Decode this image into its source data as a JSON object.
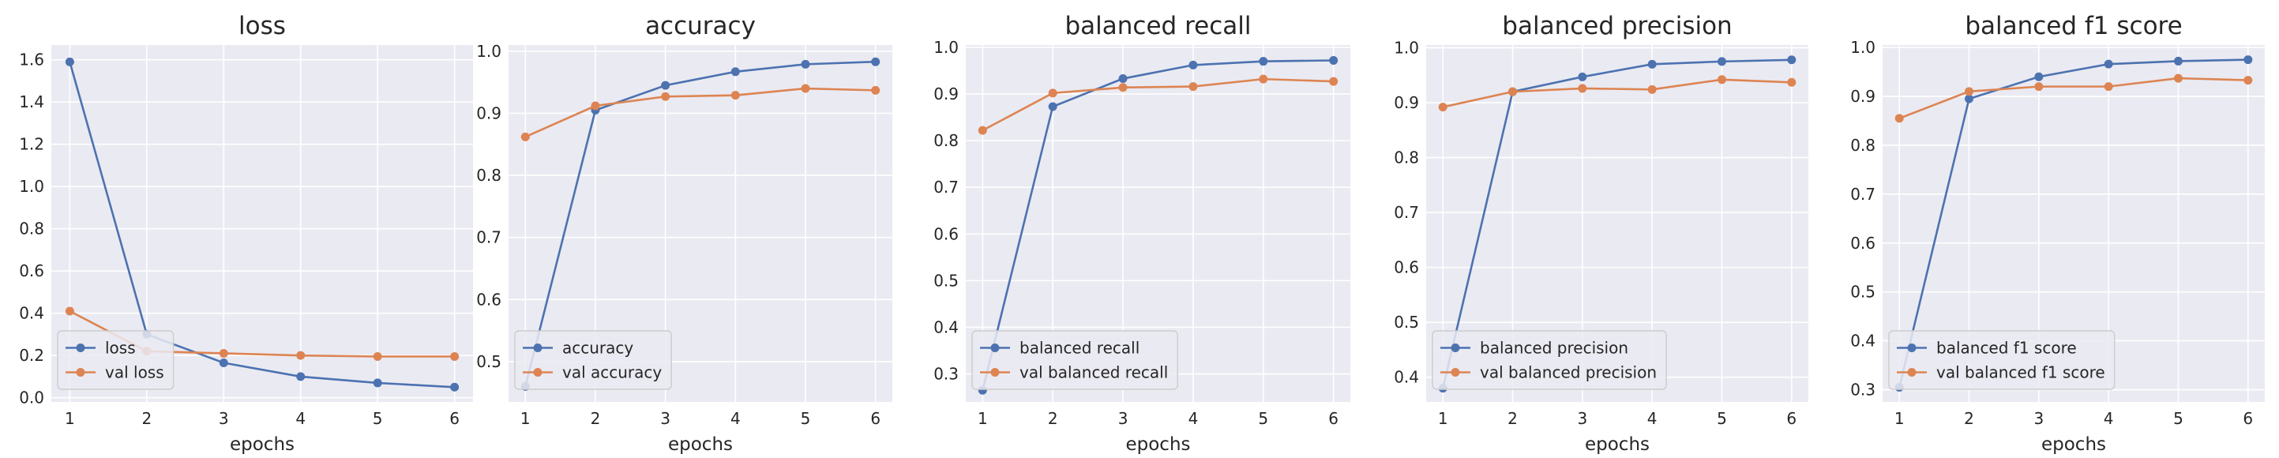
{
  "colors": {
    "train": "#4c72b0",
    "val": "#dd8452",
    "panel_bg": "#eaeaf2",
    "grid": "#ffffff",
    "legend_bg": "#eaeaf2"
  },
  "chart_data": [
    {
      "type": "line",
      "title": "loss",
      "xlabel": "epochs",
      "ylabel": "",
      "x": [
        1,
        2,
        3,
        4,
        5,
        6
      ],
      "ylim": [
        -0.02,
        1.67
      ],
      "yticks": [
        0.0,
        0.2,
        0.4,
        0.6,
        0.8,
        1.0,
        1.2,
        1.4,
        1.6
      ],
      "ytick_labels": [
        "0.0",
        "0.2",
        "0.4",
        "0.6",
        "0.8",
        "1.0",
        "1.2",
        "1.4",
        "1.6"
      ],
      "legend_placement": "lower-left",
      "grid": true,
      "series": [
        {
          "name": "loss",
          "values": [
            1.59,
            0.3,
            0.165,
            0.1,
            0.07,
            0.05
          ]
        },
        {
          "name": "val loss",
          "values": [
            0.41,
            0.22,
            0.21,
            0.2,
            0.195,
            0.195
          ]
        }
      ]
    },
    {
      "type": "line",
      "title": "accuracy",
      "xlabel": "epochs",
      "ylabel": "",
      "x": [
        1,
        2,
        3,
        4,
        5,
        6
      ],
      "ylim": [
        0.435,
        1.01
      ],
      "yticks": [
        0.5,
        0.6,
        0.7,
        0.8,
        0.9,
        1.0
      ],
      "ytick_labels": [
        "0.5",
        "0.6",
        "0.7",
        "0.8",
        "0.9",
        "1.0"
      ],
      "legend_placement": "lower-left",
      "grid": true,
      "series": [
        {
          "name": "accuracy",
          "values": [
            0.46,
            0.905,
            0.945,
            0.967,
            0.979,
            0.983
          ]
        },
        {
          "name": "val accuracy",
          "values": [
            0.862,
            0.912,
            0.927,
            0.929,
            0.94,
            0.937
          ]
        }
      ]
    },
    {
      "type": "line",
      "title": "balanced recall",
      "xlabel": "epochs",
      "ylabel": "",
      "x": [
        1,
        2,
        3,
        4,
        5,
        6
      ],
      "ylim": [
        0.24,
        1.005
      ],
      "yticks": [
        0.3,
        0.4,
        0.5,
        0.6,
        0.7,
        0.8,
        0.9,
        1.0
      ],
      "ytick_labels": [
        "0.3",
        "0.4",
        "0.5",
        "0.6",
        "0.7",
        "0.8",
        "0.9",
        "1.0"
      ],
      "legend_placement": "lower-left",
      "grid": true,
      "series": [
        {
          "name": "balanced recall",
          "values": [
            0.265,
            0.873,
            0.933,
            0.962,
            0.97,
            0.972
          ]
        },
        {
          "name": "val balanced recall",
          "values": [
            0.822,
            0.902,
            0.914,
            0.916,
            0.932,
            0.927
          ]
        }
      ]
    },
    {
      "type": "line",
      "title": "balanced precision",
      "xlabel": "epochs",
      "ylabel": "",
      "x": [
        1,
        2,
        3,
        4,
        5,
        6
      ],
      "ylim": [
        0.355,
        1.005
      ],
      "yticks": [
        0.4,
        0.5,
        0.6,
        0.7,
        0.8,
        0.9,
        1.0
      ],
      "ytick_labels": [
        "0.4",
        "0.5",
        "0.6",
        "0.7",
        "0.8",
        "0.9",
        "1.0"
      ],
      "legend_placement": "lower-left",
      "grid": true,
      "series": [
        {
          "name": "balanced precision",
          "values": [
            0.38,
            0.92,
            0.947,
            0.97,
            0.975,
            0.978
          ]
        },
        {
          "name": "val balanced precision",
          "values": [
            0.892,
            0.92,
            0.926,
            0.924,
            0.942,
            0.937
          ]
        }
      ]
    },
    {
      "type": "line",
      "title": "balanced f1 score",
      "xlabel": "epochs",
      "ylabel": "",
      "x": [
        1,
        2,
        3,
        4,
        5,
        6
      ],
      "ylim": [
        0.275,
        1.005
      ],
      "yticks": [
        0.3,
        0.4,
        0.5,
        0.6,
        0.7,
        0.8,
        0.9,
        1.0
      ],
      "ytick_labels": [
        "0.3",
        "0.4",
        "0.5",
        "0.6",
        "0.7",
        "0.8",
        "0.9",
        "1.0"
      ],
      "legend_placement": "lower-left",
      "grid": true,
      "series": [
        {
          "name": "balanced f1 score",
          "values": [
            0.305,
            0.895,
            0.94,
            0.966,
            0.972,
            0.975
          ]
        },
        {
          "name": "val balanced f1 score",
          "values": [
            0.855,
            0.91,
            0.92,
            0.92,
            0.937,
            0.933
          ]
        }
      ]
    }
  ]
}
